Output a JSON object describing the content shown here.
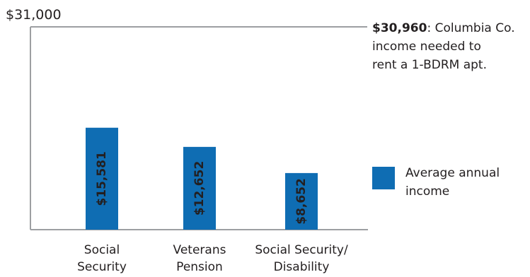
{
  "chart_data": {
    "type": "bar",
    "categories": [
      [
        "Social",
        "Security"
      ],
      [
        "Veterans",
        "Pension"
      ],
      [
        "Social Security/",
        "Disability"
      ]
    ],
    "series": [
      {
        "name": "Average annual income",
        "values": [
          15581,
          12652,
          8652
        ]
      }
    ],
    "data_labels": [
      "$15,581",
      "$12,652",
      "$8,652"
    ],
    "ylim": [
      0,
      31000
    ],
    "y_top_label": "$31,000",
    "reference_line": {
      "value": 30960,
      "label_bold": "$30,960",
      "label_lines": [
        ": Columbia Co.",
        "income needed to",
        "rent a 1-BDRM apt."
      ]
    },
    "legend": {
      "label_lines": [
        "Average annual",
        "income"
      ],
      "placement": "right"
    },
    "grid": false,
    "colors": {
      "bar": "#0f6db3",
      "axis": "#9d9fa2",
      "text": "#231f20"
    }
  }
}
